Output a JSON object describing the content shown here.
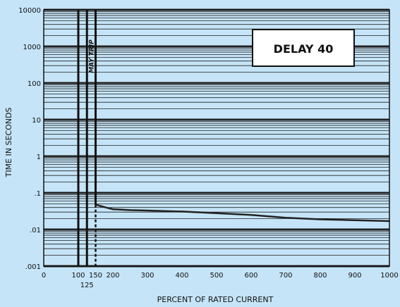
{
  "chart_data": {
    "type": "line",
    "title": "DELAY 40",
    "xlabel": "PERCENT OF RATED CURRENT",
    "ylabel": "TIME IN SECONDS",
    "xlim": [
      0,
      1000
    ],
    "ylim": [
      0.001,
      10000
    ],
    "y_scale": "log",
    "grid": true,
    "x_ticks": [
      {
        "value": 0,
        "label": "0"
      },
      {
        "value": 100,
        "label": "100"
      },
      {
        "value": 150,
        "label": "150"
      },
      {
        "value": 200,
        "label": "200"
      },
      {
        "value": 300,
        "label": "300"
      },
      {
        "value": 400,
        "label": "400"
      },
      {
        "value": 500,
        "label": "500"
      },
      {
        "value": 600,
        "label": "600"
      },
      {
        "value": 700,
        "label": "700"
      },
      {
        "value": 800,
        "label": "800"
      },
      {
        "value": 900,
        "label": "900"
      },
      {
        "value": 1000,
        "label": "1000"
      }
    ],
    "x_extra_tick": {
      "value": 125,
      "label": "125"
    },
    "y_ticks": [
      {
        "value": 10000,
        "label": "10000"
      },
      {
        "value": 1000,
        "label": "1000"
      },
      {
        "value": 100,
        "label": "100"
      },
      {
        "value": 10,
        "label": "10"
      },
      {
        "value": 1,
        "label": "1"
      },
      {
        "value": 0.1,
        "label": ".1"
      },
      {
        "value": 0.01,
        "label": ".01"
      },
      {
        "value": 0.001,
        "label": ".001"
      }
    ],
    "may_trip": {
      "label": "MAY TRIP",
      "boundaries": [
        100,
        125
      ],
      "dashed_at": 150
    },
    "series": [
      {
        "x": [
          150,
          160,
          180,
          200,
          250,
          300,
          400,
          500,
          600,
          700,
          800,
          900,
          1000
        ],
        "y": [
          0.048,
          0.045,
          0.04,
          0.036,
          0.034,
          0.033,
          0.031,
          0.028,
          0.025,
          0.021,
          0.019,
          0.018,
          0.017
        ]
      }
    ],
    "colors": {
      "background": "#c5e4f7",
      "plot_background": "#c5e4f7",
      "grid": "#222222",
      "curve": "#222222"
    }
  }
}
